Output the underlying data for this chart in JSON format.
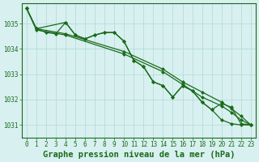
{
  "background_color": "#d8f0f0",
  "grid_color": "#b0d8d8",
  "line_color": "#1a6b1a",
  "title": "Graphe pression niveau de la mer (hPa)",
  "ylim": [
    1030.5,
    1035.8
  ],
  "xlim": [
    -0.5,
    23.5
  ],
  "yticks": [
    1031,
    1032,
    1033,
    1034,
    1035
  ],
  "xticks": [
    0,
    1,
    2,
    3,
    4,
    5,
    6,
    7,
    8,
    9,
    10,
    11,
    12,
    13,
    14,
    15,
    16,
    17,
    18,
    19,
    20,
    21,
    22,
    23
  ],
  "series1_x": [
    0,
    1,
    4,
    5,
    6,
    7,
    8,
    9,
    10,
    11,
    12,
    13,
    14,
    15,
    16,
    17,
    18,
    19,
    20,
    21,
    22,
    23
  ],
  "series1_y": [
    1035.6,
    1034.8,
    1035.05,
    1034.55,
    1034.4,
    1034.55,
    1034.65,
    1034.65,
    1034.3,
    1033.55,
    1033.3,
    1032.7,
    1032.55,
    1032.1,
    1032.55,
    1032.35,
    1031.9,
    1031.6,
    1031.2,
    1031.05,
    1031.0,
    1031.0
  ],
  "series2_x": [
    0,
    1,
    2,
    3,
    4,
    5,
    6,
    7,
    8,
    9,
    10,
    11,
    12,
    13,
    14,
    15,
    16,
    17,
    18,
    19,
    20,
    21,
    22,
    23
  ],
  "series2_y": [
    1035.6,
    1034.8,
    1034.65,
    1034.6,
    1035.05,
    1034.55,
    1034.4,
    1034.55,
    1034.65,
    1034.65,
    1034.3,
    1033.55,
    1033.3,
    1032.7,
    1032.55,
    1032.1,
    1032.55,
    1032.35,
    1031.9,
    1031.6,
    1031.85,
    1031.7,
    1031.05,
    1031.0
  ],
  "series3_x": [
    0,
    1,
    4,
    10,
    14,
    16,
    18,
    20,
    21,
    22,
    23
  ],
  "series3_y": [
    1035.6,
    1034.8,
    1034.6,
    1033.9,
    1033.2,
    1032.7,
    1032.3,
    1031.9,
    1031.65,
    1031.35,
    1031.0
  ],
  "series4_x": [
    0,
    1,
    4,
    10,
    14,
    16,
    18,
    20,
    21,
    22,
    23
  ],
  "series4_y": [
    1035.6,
    1034.75,
    1034.55,
    1033.8,
    1033.1,
    1032.6,
    1032.1,
    1031.75,
    1031.5,
    1031.2,
    1031.0
  ],
  "marker": "D",
  "markersize": 2.0,
  "linewidth": 0.9,
  "title_fontsize": 7.5,
  "tick_fontsize": 5.5
}
